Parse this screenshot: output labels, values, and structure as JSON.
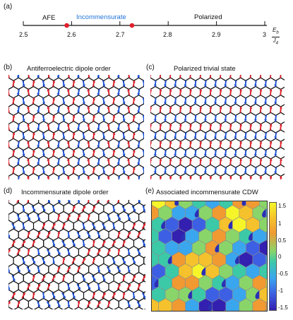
{
  "panels": {
    "a": {
      "label": "(a)",
      "regions": [
        "AFE",
        "Incommensurate",
        "Polarized"
      ],
      "ticks": [
        "2.5",
        "2.6",
        "2.7",
        "2.8",
        "2.9",
        "3"
      ],
      "axis_numerator": "E",
      "axis_numerator_sub": "b",
      "axis_denominator": "J",
      "axis_denominator_sub": "4",
      "boundaries": [
        2.59,
        2.725
      ],
      "range": [
        2.5,
        3.0
      ],
      "colors": {
        "incommensurate": "#1e73d8",
        "boundary": "#e0202a"
      }
    },
    "b": {
      "label": "(b)",
      "title": "Antiferroelectric dipole order"
    },
    "c": {
      "label": "(c)",
      "title": "Polarized trivial state"
    },
    "d": {
      "label": "(d)",
      "title": "Incommensurate dipole order"
    },
    "e": {
      "label": "(e)",
      "title": "Associated incommensurate CDW",
      "colorbar_ticks": [
        "1.5",
        "1",
        "0.5",
        "0",
        "-0.5",
        "-1",
        "-1.5"
      ],
      "colorbar_range": [
        -1.5,
        1.5
      ]
    }
  },
  "colors": {
    "red_arrow": "#e0202a",
    "blue_arrow": "#1a4fd6",
    "lattice": "#111111"
  }
}
